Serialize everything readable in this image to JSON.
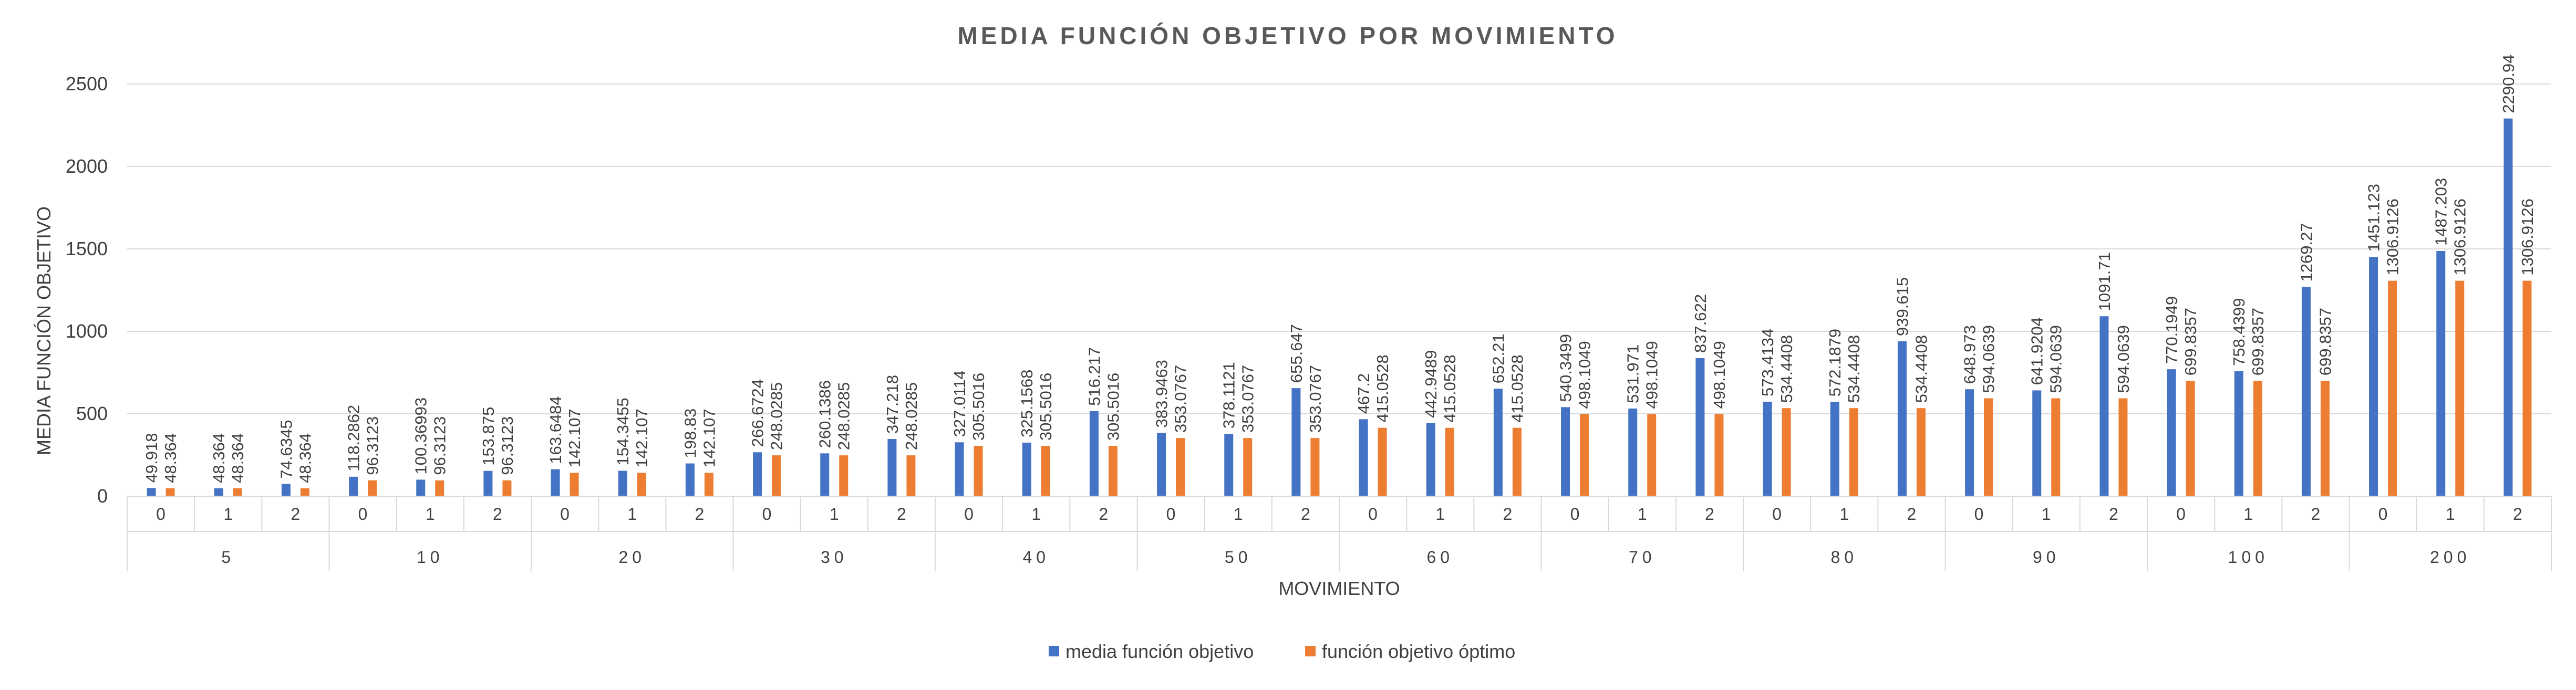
{
  "chart_data": {
    "type": "bar",
    "title": "MEDIA FUNCIÓN OBJETIVO POR MOVIMIENTO",
    "xlabel": "MOVIMIENTO",
    "ylabel": "MEDIA FUNCIÓN OBJETIVO",
    "ylim": [
      0,
      2500
    ],
    "yticks": [
      "0",
      "500",
      "1000",
      "1500",
      "2000",
      "2500"
    ],
    "grid": true,
    "legend_position": "bottom",
    "groups": [
      "5",
      "10",
      "20",
      "30",
      "40",
      "50",
      "60",
      "70",
      "80",
      "90",
      "100",
      "200"
    ],
    "subcategories": [
      "0",
      "1",
      "2"
    ],
    "series": [
      {
        "name": "media función objetivo",
        "color": "#4472c4",
        "values": [
          49.918,
          48.364,
          74.6345,
          118.2862,
          100.36993,
          153.875,
          163.6484,
          154.3455,
          198.83,
          266.6724,
          260.1386,
          347.218,
          327.0114,
          325.1568,
          516.217,
          383.9463,
          378.1121,
          655.647,
          467.2,
          442.9489,
          652.21,
          540.3499,
          531.971,
          837.622,
          573.4134,
          572.1879,
          939.615,
          648.973,
          641.9204,
          1091.71,
          770.1949,
          758.4399,
          1269.27,
          1451.123,
          1487.203,
          2290.94
        ],
        "labels": [
          "49.918",
          "48.364",
          "74.6345",
          "118.2862",
          "100.36993",
          "153.875",
          "163.6484",
          "154.3455",
          "198.83",
          "266.6724",
          "260.1386",
          "347.218",
          "327.0114",
          "325.1568",
          "516.217",
          "383.9463",
          "378.1121",
          "655.647",
          "467.2",
          "442.9489",
          "652.21",
          "540.3499",
          "531.971",
          "837.622",
          "573.4134",
          "572.1879",
          "939.615",
          "648.973",
          "641.9204",
          "1091.71",
          "770.1949",
          "758.4399",
          "1269.27",
          "1451.123",
          "1487.203",
          "2290.94"
        ]
      },
      {
        "name": "función objetivo óptimo",
        "color": "#ed7d31",
        "values": [
          48.364,
          48.364,
          48.364,
          96.3123,
          96.3123,
          96.3123,
          142.107,
          142.107,
          142.107,
          248.0285,
          248.0285,
          248.0285,
          305.5016,
          305.5016,
          305.5016,
          353.0767,
          353.0767,
          353.0767,
          415.0528,
          415.0528,
          415.0528,
          498.1049,
          498.1049,
          498.1049,
          534.4408,
          534.4408,
          534.4408,
          594.0639,
          594.0639,
          594.0639,
          699.8357,
          699.8357,
          699.8357,
          1306.9126,
          1306.9126,
          1306.9126
        ],
        "labels": [
          "48.364",
          "48.364",
          "48.364",
          "96.3123",
          "96.3123",
          "96.3123",
          "142.107",
          "142.107",
          "142.107",
          "248.0285",
          "248.0285",
          "248.0285",
          "305.5016",
          "305.5016",
          "305.5016",
          "353.0767",
          "353.0767",
          "353.0767",
          "415.0528",
          "415.0528",
          "415.0528",
          "498.1049",
          "498.1049",
          "498.1049",
          "534.4408",
          "534.4408",
          "534.4408",
          "594.0639",
          "594.0639",
          "594.0639",
          "699.8357",
          "699.8357",
          "699.8357",
          "1306.9126",
          "1306.9126",
          "1306.9126"
        ]
      }
    ]
  }
}
